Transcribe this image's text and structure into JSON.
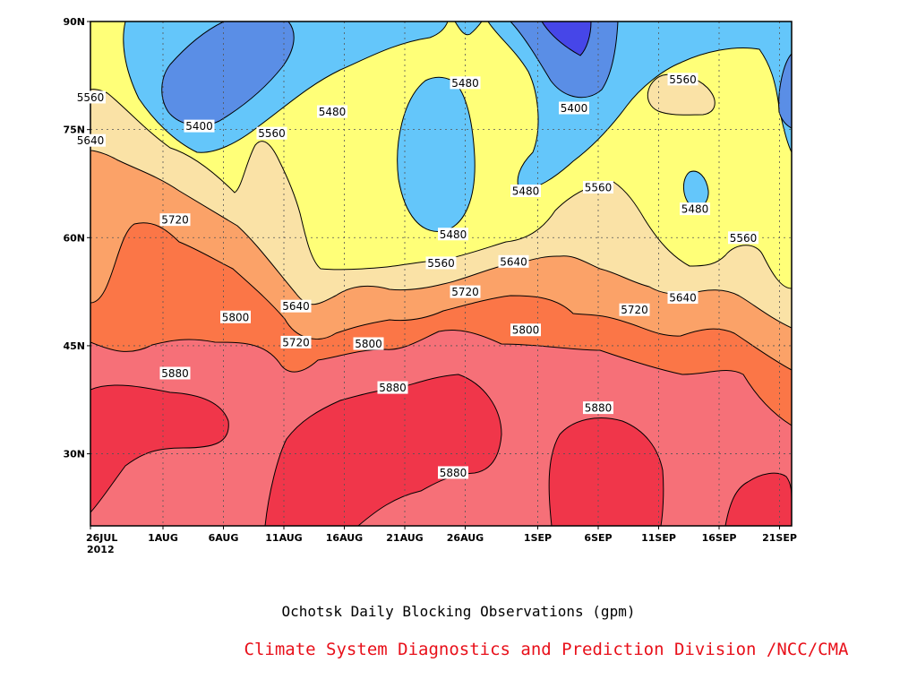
{
  "chart_data": {
    "type": "heatmap",
    "subtype": "filled-contour",
    "title": "Ochotsk Daily Blocking Observations (gpm)",
    "credit": "Climate System Diagnostics and Prediction Division /NCC/CMA",
    "x_axis": {
      "range": [
        "2012-07-26",
        "2012-09-22"
      ],
      "ticks": [
        "26JUL",
        "1AUG",
        "6AUG",
        "11AUG",
        "16AUG",
        "21AUG",
        "26AUG",
        "1SEP",
        "6SEP",
        "11SEP",
        "16SEP",
        "21SEP"
      ],
      "year_label": "2012"
    },
    "y_axis": {
      "range": [
        20,
        90
      ],
      "ticks": [
        "30N",
        "45N",
        "60N",
        "75N",
        "90N"
      ]
    },
    "grid": true,
    "contour_levels": [
      5400,
      5480,
      5560,
      5640,
      5720,
      5800,
      5880
    ],
    "fill_colors": {
      "below_5400": "#4646e8",
      "5400_5480": "#5a8ee6",
      "above_5480": "#64c6fa",
      "5480_5560": "#ffff78",
      "5560_5640": "#fae2a6",
      "5640_5720": "#fba268",
      "5720_5800": "#fb7647",
      "5800_5880": "#f67078",
      "above_5880": "#f0364a"
    },
    "contour_labels": [
      {
        "value": "5560",
        "date": "07-26",
        "lat": 79.5
      },
      {
        "value": "5640",
        "date": "07-26",
        "lat": 73.5
      },
      {
        "value": "5400",
        "date": "08-04",
        "lat": 75.5
      },
      {
        "value": "5560",
        "date": "08-10",
        "lat": 74.5
      },
      {
        "value": "5480",
        "date": "08-15",
        "lat": 77.5
      },
      {
        "value": "5480",
        "date": "08-26",
        "lat": 81.5
      },
      {
        "value": "5400",
        "date": "09-04",
        "lat": 78
      },
      {
        "value": "5560",
        "date": "09-13",
        "lat": 82
      },
      {
        "value": "5480",
        "date": "08-31",
        "lat": 66.5
      },
      {
        "value": "5560",
        "date": "09-06",
        "lat": 67
      },
      {
        "value": "5480",
        "date": "09-14",
        "lat": 64
      },
      {
        "value": "5720",
        "date": "08-02",
        "lat": 62.5
      },
      {
        "value": "5480",
        "date": "08-25",
        "lat": 60.5
      },
      {
        "value": "5560",
        "date": "08-24",
        "lat": 56.5
      },
      {
        "value": "5640",
        "date": "08-30",
        "lat": 56.7
      },
      {
        "value": "5560",
        "date": "09-18",
        "lat": 60
      },
      {
        "value": "5720",
        "date": "08-26",
        "lat": 52.5
      },
      {
        "value": "5640",
        "date": "08-12",
        "lat": 50.5
      },
      {
        "value": "5800",
        "date": "08-07",
        "lat": 49
      },
      {
        "value": "5640",
        "date": "09-13",
        "lat": 51.7
      },
      {
        "value": "5720",
        "date": "09-09",
        "lat": 50
      },
      {
        "value": "5800",
        "date": "08-31",
        "lat": 47.2
      },
      {
        "value": "5720",
        "date": "08-12",
        "lat": 45.5
      },
      {
        "value": "5800",
        "date": "08-18",
        "lat": 45.3
      },
      {
        "value": "5880",
        "date": "08-02",
        "lat": 41.2
      },
      {
        "value": "5880",
        "date": "08-20",
        "lat": 39.2
      },
      {
        "value": "5880",
        "date": "09-06",
        "lat": 36.4
      },
      {
        "value": "5880",
        "date": "08-25",
        "lat": 27.4
      }
    ]
  }
}
